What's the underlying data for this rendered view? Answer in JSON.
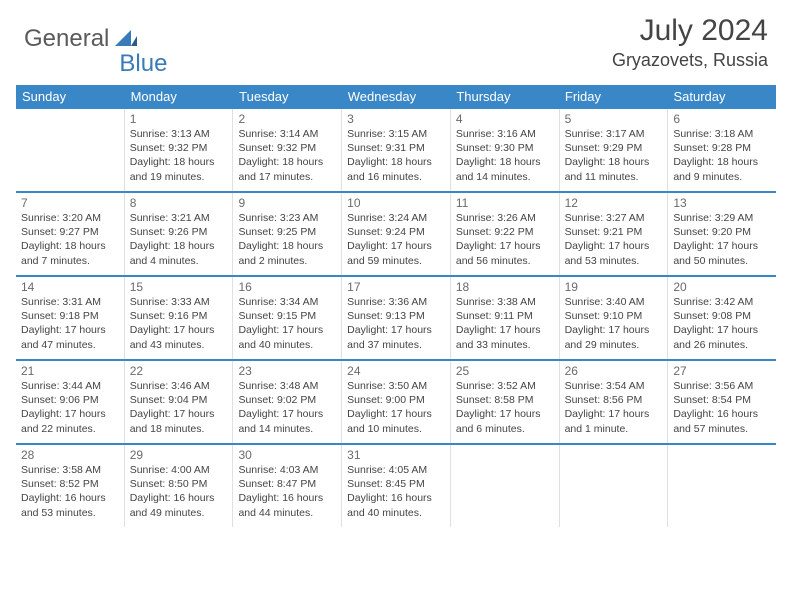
{
  "brand": {
    "part1": "General",
    "part2": "Blue"
  },
  "title": "July 2024",
  "location": "Gryazovets, Russia",
  "colors": {
    "header_bg": "#3a87c7",
    "row_border": "#3a87c7",
    "text": "#444444",
    "brand_gray": "#5a5a5a",
    "brand_blue": "#3a7ab8"
  },
  "weekdays": [
    "Sunday",
    "Monday",
    "Tuesday",
    "Wednesday",
    "Thursday",
    "Friday",
    "Saturday"
  ],
  "weeks": [
    [
      null,
      {
        "n": "1",
        "sr": "Sunrise: 3:13 AM",
        "ss": "Sunset: 9:32 PM",
        "d1": "Daylight: 18 hours",
        "d2": "and 19 minutes."
      },
      {
        "n": "2",
        "sr": "Sunrise: 3:14 AM",
        "ss": "Sunset: 9:32 PM",
        "d1": "Daylight: 18 hours",
        "d2": "and 17 minutes."
      },
      {
        "n": "3",
        "sr": "Sunrise: 3:15 AM",
        "ss": "Sunset: 9:31 PM",
        "d1": "Daylight: 18 hours",
        "d2": "and 16 minutes."
      },
      {
        "n": "4",
        "sr": "Sunrise: 3:16 AM",
        "ss": "Sunset: 9:30 PM",
        "d1": "Daylight: 18 hours",
        "d2": "and 14 minutes."
      },
      {
        "n": "5",
        "sr": "Sunrise: 3:17 AM",
        "ss": "Sunset: 9:29 PM",
        "d1": "Daylight: 18 hours",
        "d2": "and 11 minutes."
      },
      {
        "n": "6",
        "sr": "Sunrise: 3:18 AM",
        "ss": "Sunset: 9:28 PM",
        "d1": "Daylight: 18 hours",
        "d2": "and 9 minutes."
      }
    ],
    [
      {
        "n": "7",
        "sr": "Sunrise: 3:20 AM",
        "ss": "Sunset: 9:27 PM",
        "d1": "Daylight: 18 hours",
        "d2": "and 7 minutes."
      },
      {
        "n": "8",
        "sr": "Sunrise: 3:21 AM",
        "ss": "Sunset: 9:26 PM",
        "d1": "Daylight: 18 hours",
        "d2": "and 4 minutes."
      },
      {
        "n": "9",
        "sr": "Sunrise: 3:23 AM",
        "ss": "Sunset: 9:25 PM",
        "d1": "Daylight: 18 hours",
        "d2": "and 2 minutes."
      },
      {
        "n": "10",
        "sr": "Sunrise: 3:24 AM",
        "ss": "Sunset: 9:24 PM",
        "d1": "Daylight: 17 hours",
        "d2": "and 59 minutes."
      },
      {
        "n": "11",
        "sr": "Sunrise: 3:26 AM",
        "ss": "Sunset: 9:22 PM",
        "d1": "Daylight: 17 hours",
        "d2": "and 56 minutes."
      },
      {
        "n": "12",
        "sr": "Sunrise: 3:27 AM",
        "ss": "Sunset: 9:21 PM",
        "d1": "Daylight: 17 hours",
        "d2": "and 53 minutes."
      },
      {
        "n": "13",
        "sr": "Sunrise: 3:29 AM",
        "ss": "Sunset: 9:20 PM",
        "d1": "Daylight: 17 hours",
        "d2": "and 50 minutes."
      }
    ],
    [
      {
        "n": "14",
        "sr": "Sunrise: 3:31 AM",
        "ss": "Sunset: 9:18 PM",
        "d1": "Daylight: 17 hours",
        "d2": "and 47 minutes."
      },
      {
        "n": "15",
        "sr": "Sunrise: 3:33 AM",
        "ss": "Sunset: 9:16 PM",
        "d1": "Daylight: 17 hours",
        "d2": "and 43 minutes."
      },
      {
        "n": "16",
        "sr": "Sunrise: 3:34 AM",
        "ss": "Sunset: 9:15 PM",
        "d1": "Daylight: 17 hours",
        "d2": "and 40 minutes."
      },
      {
        "n": "17",
        "sr": "Sunrise: 3:36 AM",
        "ss": "Sunset: 9:13 PM",
        "d1": "Daylight: 17 hours",
        "d2": "and 37 minutes."
      },
      {
        "n": "18",
        "sr": "Sunrise: 3:38 AM",
        "ss": "Sunset: 9:11 PM",
        "d1": "Daylight: 17 hours",
        "d2": "and 33 minutes."
      },
      {
        "n": "19",
        "sr": "Sunrise: 3:40 AM",
        "ss": "Sunset: 9:10 PM",
        "d1": "Daylight: 17 hours",
        "d2": "and 29 minutes."
      },
      {
        "n": "20",
        "sr": "Sunrise: 3:42 AM",
        "ss": "Sunset: 9:08 PM",
        "d1": "Daylight: 17 hours",
        "d2": "and 26 minutes."
      }
    ],
    [
      {
        "n": "21",
        "sr": "Sunrise: 3:44 AM",
        "ss": "Sunset: 9:06 PM",
        "d1": "Daylight: 17 hours",
        "d2": "and 22 minutes."
      },
      {
        "n": "22",
        "sr": "Sunrise: 3:46 AM",
        "ss": "Sunset: 9:04 PM",
        "d1": "Daylight: 17 hours",
        "d2": "and 18 minutes."
      },
      {
        "n": "23",
        "sr": "Sunrise: 3:48 AM",
        "ss": "Sunset: 9:02 PM",
        "d1": "Daylight: 17 hours",
        "d2": "and 14 minutes."
      },
      {
        "n": "24",
        "sr": "Sunrise: 3:50 AM",
        "ss": "Sunset: 9:00 PM",
        "d1": "Daylight: 17 hours",
        "d2": "and 10 minutes."
      },
      {
        "n": "25",
        "sr": "Sunrise: 3:52 AM",
        "ss": "Sunset: 8:58 PM",
        "d1": "Daylight: 17 hours",
        "d2": "and 6 minutes."
      },
      {
        "n": "26",
        "sr": "Sunrise: 3:54 AM",
        "ss": "Sunset: 8:56 PM",
        "d1": "Daylight: 17 hours",
        "d2": "and 1 minute."
      },
      {
        "n": "27",
        "sr": "Sunrise: 3:56 AM",
        "ss": "Sunset: 8:54 PM",
        "d1": "Daylight: 16 hours",
        "d2": "and 57 minutes."
      }
    ],
    [
      {
        "n": "28",
        "sr": "Sunrise: 3:58 AM",
        "ss": "Sunset: 8:52 PM",
        "d1": "Daylight: 16 hours",
        "d2": "and 53 minutes."
      },
      {
        "n": "29",
        "sr": "Sunrise: 4:00 AM",
        "ss": "Sunset: 8:50 PM",
        "d1": "Daylight: 16 hours",
        "d2": "and 49 minutes."
      },
      {
        "n": "30",
        "sr": "Sunrise: 4:03 AM",
        "ss": "Sunset: 8:47 PM",
        "d1": "Daylight: 16 hours",
        "d2": "and 44 minutes."
      },
      {
        "n": "31",
        "sr": "Sunrise: 4:05 AM",
        "ss": "Sunset: 8:45 PM",
        "d1": "Daylight: 16 hours",
        "d2": "and 40 minutes."
      },
      null,
      null,
      null
    ]
  ]
}
